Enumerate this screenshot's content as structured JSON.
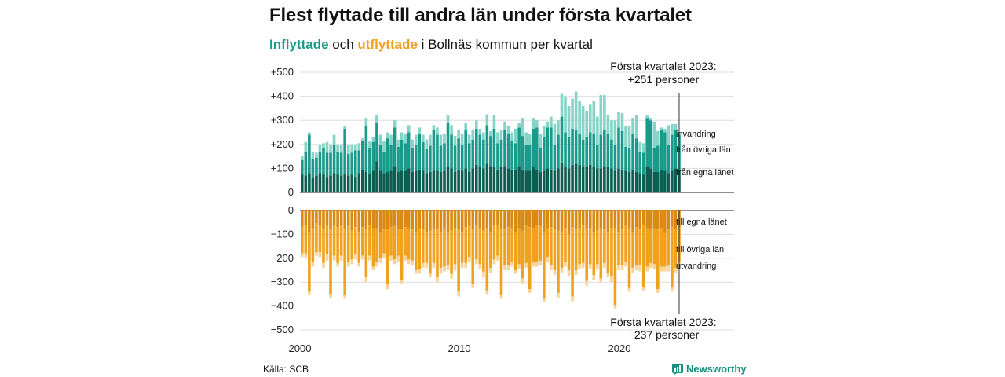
{
  "title": "Flest flyttade till andra län under första kvartalet",
  "subtitle": {
    "part1": "Inflyttade",
    "part2": " och ",
    "part3": "utflyttade",
    "part4": " i Bollnäs kommun per kvartal"
  },
  "source": "Källa: SCB",
  "brand": "Newsworthy",
  "colors": {
    "in_local": "#0d5e52",
    "in_other": "#1a9a8b",
    "in_immig": "#86d4c7",
    "out_local": "#d98a15",
    "out_other": "#f0a21f",
    "out_emig": "#f8d49a"
  },
  "chart_data": {
    "type": "bar",
    "ytop": {
      "ticks": [
        "+500",
        "+400",
        "+300",
        "+200",
        "+100",
        "0"
      ],
      "ylim": [
        0,
        500
      ]
    },
    "ybottom": {
      "ticks": [
        "0",
        "−100",
        "−200",
        "−300",
        "−400",
        "−500"
      ],
      "ylim": [
        -500,
        0
      ]
    },
    "xticks": [
      "2000",
      "2010",
      "2020"
    ],
    "annotation_top": {
      "line1": "Första kvartalet 2023:",
      "line2": "+251 personer"
    },
    "annotation_bottom": {
      "line1": "Första kvartalet 2023:",
      "line2": "−237 personer"
    },
    "series_labels": {
      "immig": "invandring",
      "in_other": "från övriga län",
      "in_local": "från egna länet",
      "out_local": "till egna länet",
      "out_other": "till övriga län",
      "emig": "utvandring"
    },
    "quarters_start": "2000 Q1",
    "in_local": [
      75,
      70,
      80,
      60,
      70,
      80,
      75,
      65,
      70,
      80,
      75,
      70,
      75,
      70,
      75,
      65,
      80,
      95,
      85,
      75,
      90,
      130,
      90,
      80,
      85,
      90,
      110,
      85,
      90,
      90,
      100,
      85,
      90,
      95,
      90,
      80,
      85,
      90,
      90,
      85,
      90,
      110,
      100,
      85,
      95,
      90,
      100,
      85,
      100,
      115,
      110,
      100,
      120,
      110,
      105,
      95,
      105,
      110,
      100,
      95,
      95,
      110,
      95,
      90,
      90,
      105,
      95,
      85,
      90,
      100,
      95,
      90,
      100,
      125,
      110,
      100,
      115,
      120,
      115,
      110,
      110,
      115,
      105,
      100,
      100,
      110,
      105,
      100,
      90,
      100,
      95,
      90,
      85,
      95,
      85,
      80,
      75,
      110,
      100,
      85,
      85,
      95,
      90,
      80,
      90,
      100,
      95
    ],
    "in_other": [
      60,
      100,
      160,
      80,
      75,
      90,
      110,
      100,
      95,
      120,
      95,
      95,
      190,
      90,
      90,
      110,
      95,
      120,
      190,
      110,
      120,
      160,
      110,
      90,
      140,
      110,
      160,
      105,
      130,
      115,
      150,
      100,
      110,
      150,
      120,
      100,
      110,
      170,
      150,
      110,
      115,
      180,
      140,
      110,
      130,
      110,
      160,
      120,
      120,
      150,
      130,
      120,
      160,
      125,
      160,
      110,
      115,
      150,
      145,
      120,
      110,
      160,
      140,
      110,
      110,
      160,
      175,
      100,
      140,
      170,
      175,
      110,
      140,
      190,
      140,
      130,
      150,
      140,
      130,
      110,
      120,
      135,
      140,
      100,
      140,
      150,
      140,
      120,
      110,
      170,
      160,
      100,
      100,
      150,
      140,
      90,
      90,
      200,
      200,
      100,
      110,
      165,
      160,
      120,
      150,
      160,
      145
    ],
    "in_immig": [
      15,
      40,
      10,
      30,
      20,
      30,
      20,
      45,
      35,
      40,
      30,
      35,
      10,
      40,
      35,
      25,
      30,
      10,
      35,
      30,
      20,
      30,
      40,
      45,
      25,
      40,
      30,
      30,
      30,
      40,
      30,
      35,
      40,
      25,
      30,
      40,
      45,
      20,
      30,
      45,
      40,
      30,
      40,
      40,
      35,
      45,
      30,
      35,
      40,
      35,
      25,
      30,
      45,
      20,
      55,
      45,
      40,
      35,
      30,
      35,
      60,
      20,
      75,
      50,
      45,
      45,
      30,
      60,
      45,
      25,
      45,
      85,
      60,
      95,
      150,
      130,
      125,
      160,
      135,
      140,
      110,
      115,
      135,
      115,
      165,
      145,
      75,
      80,
      100,
      65,
      75,
      85,
      90,
      65,
      95,
      40,
      40,
      10,
      10,
      110,
      60,
      10,
      15,
      80,
      45,
      25,
      10
    ],
    "out_local": [
      70,
      60,
      90,
      75,
      55,
      65,
      80,
      65,
      80,
      60,
      70,
      60,
      75,
      65,
      85,
      70,
      90,
      70,
      80,
      60,
      75,
      75,
      90,
      80,
      80,
      70,
      65,
      80,
      80,
      70,
      75,
      80,
      90,
      75,
      80,
      90,
      85,
      80,
      80,
      90,
      75,
      90,
      85,
      75,
      80,
      90,
      70,
      65,
      80,
      65,
      75,
      85,
      75,
      90,
      65,
      60,
      75,
      80,
      70,
      75,
      90,
      75,
      85,
      60,
      70,
      75,
      65,
      60,
      90,
      75,
      70,
      80,
      85,
      90,
      75,
      100,
      70,
      80,
      75,
      60,
      75,
      75,
      90,
      85,
      75,
      80,
      90,
      75,
      75,
      90,
      80,
      65,
      75,
      90,
      70,
      80,
      60,
      75,
      80,
      75,
      80,
      75,
      95,
      80,
      70,
      80,
      70
    ],
    "out_other": [
      110,
      120,
      250,
      140,
      120,
      110,
      140,
      120,
      270,
      130,
      150,
      130,
      280,
      150,
      120,
      115,
      130,
      120,
      200,
      130,
      160,
      140,
      110,
      100,
      230,
      120,
      140,
      110,
      210,
      120,
      130,
      130,
      160,
      170,
      140,
      130,
      180,
      140,
      200,
      150,
      160,
      140,
      180,
      150,
      260,
      130,
      150,
      130,
      230,
      140,
      150,
      170,
      260,
      150,
      140,
      130,
      280,
      150,
      160,
      140,
      160,
      150,
      200,
      160,
      260,
      140,
      150,
      150,
      280,
      120,
      160,
      170,
      260,
      150,
      140,
      150,
      290,
      170,
      150,
      160,
      220,
      150,
      180,
      140,
      210,
      140,
      170,
      200,
      320,
      140,
      150,
      150,
      250,
      150,
      160,
      150,
      260,
      160,
      140,
      150,
      250,
      160,
      140,
      150,
      250,
      160,
      145
    ],
    "out_emig": [
      15,
      20,
      15,
      20,
      15,
      20,
      20,
      25,
      15,
      20,
      15,
      20,
      15,
      20,
      20,
      20,
      15,
      15,
      20,
      20,
      15,
      20,
      20,
      20,
      20,
      20,
      20,
      25,
      15,
      20,
      20,
      20,
      15,
      20,
      20,
      20,
      15,
      20,
      20,
      25,
      20,
      20,
      20,
      25,
      20,
      20,
      20,
      20,
      15,
      20,
      20,
      25,
      15,
      20,
      20,
      20,
      15,
      20,
      20,
      20,
      15,
      20,
      20,
      20,
      15,
      20,
      20,
      20,
      15,
      20,
      20,
      20,
      20,
      20,
      20,
      25,
      20,
      20,
      20,
      20,
      20,
      20,
      20,
      20,
      15,
      20,
      20,
      25,
      15,
      20,
      20,
      20,
      15,
      20,
      20,
      25,
      15,
      20,
      20,
      20,
      15,
      20,
      20,
      25,
      20,
      20,
      22
    ]
  }
}
